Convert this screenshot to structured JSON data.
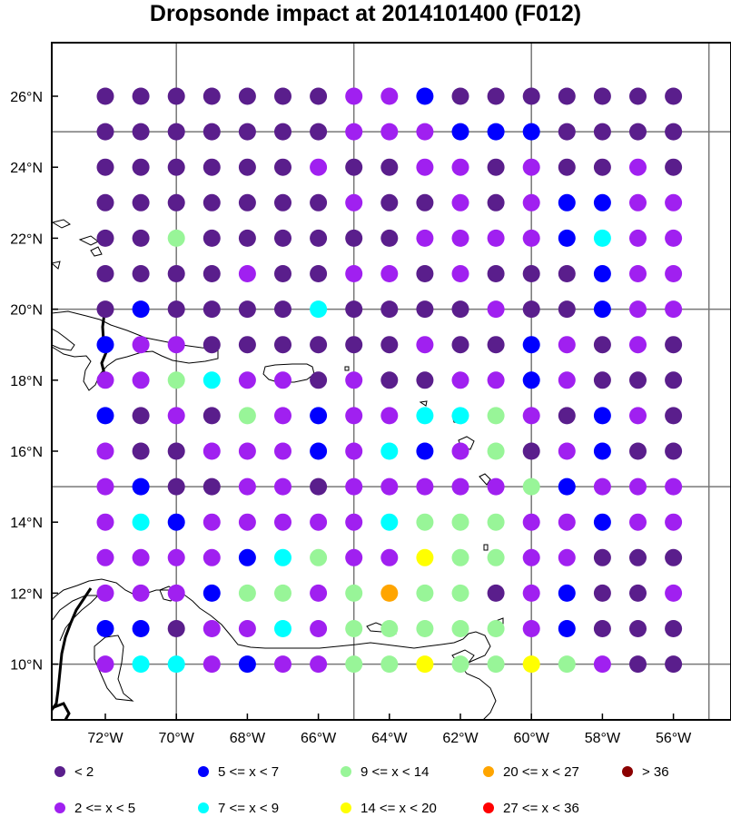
{
  "title": "Dropsonde impact at 2014101400 (F012)",
  "chart_data": {
    "type": "scatter",
    "lon_ticks": [
      {
        "value": -72,
        "label": "72°W"
      },
      {
        "value": -70,
        "label": "70°W"
      },
      {
        "value": -68,
        "label": "68°W"
      },
      {
        "value": -66,
        "label": "66°W"
      },
      {
        "value": -64,
        "label": "64°W"
      },
      {
        "value": -62,
        "label": "62°W"
      },
      {
        "value": -60,
        "label": "60°W"
      },
      {
        "value": -58,
        "label": "58°W"
      },
      {
        "value": -56,
        "label": "56°W"
      }
    ],
    "lat_ticks": [
      {
        "value": 10,
        "label": "10°N"
      },
      {
        "value": 12,
        "label": "12°N"
      },
      {
        "value": 14,
        "label": "14°N"
      },
      {
        "value": 16,
        "label": "16°N"
      },
      {
        "value": 18,
        "label": "18°N"
      },
      {
        "value": 20,
        "label": "20°N"
      },
      {
        "value": 22,
        "label": "22°N"
      },
      {
        "value": 24,
        "label": "24°N"
      },
      {
        "value": 26,
        "label": "26°N"
      }
    ],
    "lon_range": [
      -73.5,
      -54.8
    ],
    "lat_range": [
      8.5,
      27.5
    ],
    "grid_lon": [
      -70,
      -65,
      -60,
      -55
    ],
    "grid_lat": [
      10,
      15,
      20,
      25
    ],
    "point_lons": [
      -72,
      -71,
      -70,
      -69,
      -68,
      -67,
      -66,
      -65,
      -64,
      -63,
      -62,
      -61,
      -60,
      -59,
      -58,
      -57,
      -56
    ],
    "point_lats": [
      26,
      25,
      24,
      23,
      22,
      21,
      20,
      19,
      18,
      17,
      16,
      15,
      14,
      13,
      12,
      11,
      10
    ],
    "classes": [
      {
        "label": "<  2",
        "color": "#5a1e8c"
      },
      {
        "label": "2 <= x <  5",
        "color": "#a020f0"
      },
      {
        "label": "5 <= x <  7",
        "color": "#0000ff"
      },
      {
        "label": "7 <= x <  9",
        "color": "#00ffff"
      },
      {
        "label": "9 <= x < 14",
        "color": "#98f598"
      },
      {
        "label": "14 <= x < 20",
        "color": "#ffff00"
      },
      {
        "label": "20 <= x < 27",
        "color": "#ffa500"
      },
      {
        "label": "27 <= x < 36",
        "color": "#ff0000"
      },
      {
        "label": "> 36",
        "color": "#8b0000"
      }
    ],
    "grid": [
      "00000001120000000",
      "00000001112220000",
      "00000010011010010",
      "00000001001012211",
      "00400000011112311",
      "00001001101000211",
      "02000030000100211",
      "21100000010021010",
      "11431101001121000",
      "20104121133410210",
      "10011121321401200",
      "12001101111142111",
      "13211111344411211",
      "11112341154411000",
      "11124414644012001",
      "22011314444412000",
      "13312114454454100"
    ]
  }
}
